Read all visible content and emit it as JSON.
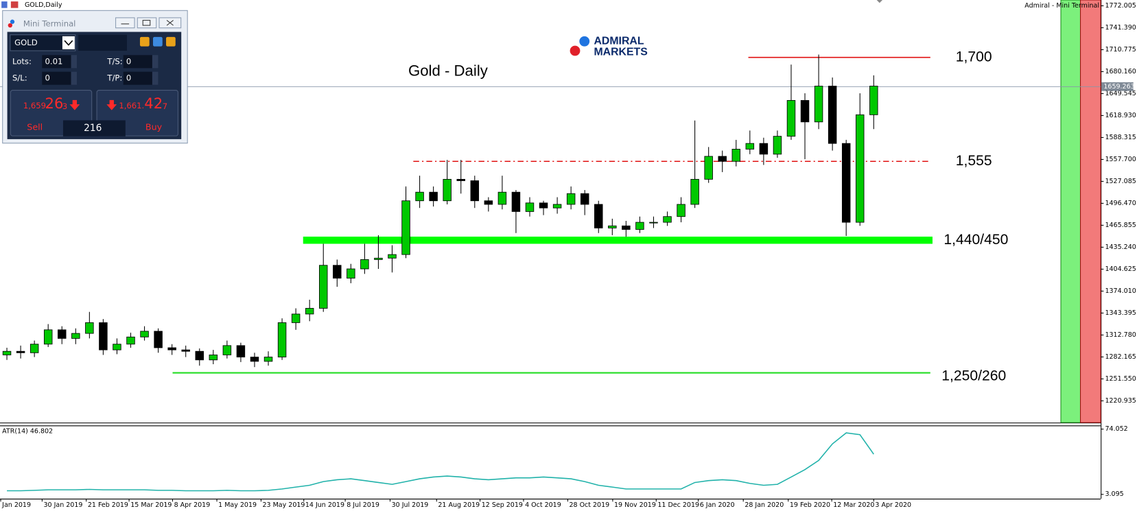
{
  "chart_data": {
    "type": "candlestick",
    "title": "GOLD,Daily",
    "terminal_title": "Admiral - Mini Terminal",
    "annotation": "Gold - Daily",
    "brand": [
      "ADMIRAL",
      "MARKETS"
    ],
    "open": [
      1285,
      1290,
      1288,
      1300,
      1320,
      1308,
      1315,
      1330,
      1292,
      1300,
      1310,
      1318,
      1295,
      1292,
      1290,
      1278,
      1285,
      1298,
      1282,
      1276,
      1282,
      1330,
      1342,
      1350,
      1410,
      1392,
      1405,
      1418,
      1420,
      1425,
      1500,
      1512,
      1500,
      1530,
      1528,
      1500,
      1495,
      1512,
      1485,
      1497,
      1490,
      1495,
      1510,
      1495,
      1462,
      1465,
      1460,
      1470,
      1470,
      1478,
      1495,
      1530,
      1562,
      1555,
      1572,
      1580,
      1565,
      1590,
      1640,
      1610,
      1660,
      1580,
      1470,
      1620
    ],
    "high": [
      1295,
      1298,
      1305,
      1328,
      1325,
      1322,
      1345,
      1335,
      1308,
      1316,
      1325,
      1322,
      1300,
      1298,
      1294,
      1292,
      1305,
      1302,
      1288,
      1290,
      1336,
      1350,
      1362,
      1440,
      1418,
      1412,
      1440,
      1452,
      1438,
      1520,
      1535,
      1520,
      1557,
      1557,
      1535,
      1505,
      1535,
      1515,
      1505,
      1500,
      1505,
      1520,
      1515,
      1500,
      1475,
      1472,
      1478,
      1478,
      1485,
      1505,
      1612,
      1575,
      1570,
      1585,
      1598,
      1588,
      1598,
      1690,
      1650,
      1704,
      1672,
      1585,
      1650,
      1675
    ],
    "low": [
      1278,
      1280,
      1282,
      1296,
      1300,
      1300,
      1308,
      1285,
      1286,
      1295,
      1305,
      1288,
      1285,
      1282,
      1270,
      1272,
      1280,
      1275,
      1268,
      1270,
      1278,
      1320,
      1332,
      1345,
      1380,
      1385,
      1398,
      1405,
      1400,
      1420,
      1490,
      1492,
      1495,
      1510,
      1490,
      1485,
      1488,
      1455,
      1478,
      1480,
      1482,
      1488,
      1480,
      1455,
      1452,
      1450,
      1455,
      1462,
      1465,
      1470,
      1490,
      1525,
      1540,
      1548,
      1565,
      1550,
      1560,
      1585,
      1558,
      1600,
      1570,
      1451,
      1465,
      1600
    ],
    "close": [
      1290,
      1288,
      1300,
      1320,
      1308,
      1315,
      1330,
      1292,
      1300,
      1310,
      1318,
      1295,
      1292,
      1290,
      1278,
      1285,
      1298,
      1282,
      1276,
      1282,
      1330,
      1342,
      1350,
      1410,
      1392,
      1405,
      1418,
      1420,
      1425,
      1500,
      1512,
      1500,
      1530,
      1528,
      1500,
      1495,
      1512,
      1485,
      1497,
      1490,
      1495,
      1510,
      1495,
      1462,
      1465,
      1460,
      1470,
      1470,
      1478,
      1495,
      1530,
      1562,
      1555,
      1572,
      1580,
      1565,
      1590,
      1640,
      1610,
      1660,
      1580,
      1470,
      1620,
      1660
    ],
    "up_color": "#00c800",
    "down_color": "#000000",
    "xlim": [
      -0.5,
      79.5
    ],
    "xticks": [
      {
        "value": -0.45,
        "label": "Jan 2019"
      },
      {
        "value": 2.56,
        "label": "30 Jan 2019"
      },
      {
        "value": 5.77,
        "label": "21 Feb 2019"
      },
      {
        "value": 8.88,
        "label": "15 Mar 2019"
      },
      {
        "value": 12.04,
        "label": "8 Apr 2019"
      },
      {
        "value": 15.26,
        "label": "1 May 2019"
      },
      {
        "value": 18.47,
        "label": "23 May 2019"
      },
      {
        "value": 21.58,
        "label": "14 Jun 2019"
      },
      {
        "value": 24.59,
        "label": "8 Jul 2019"
      },
      {
        "value": 27.85,
        "label": "30 Jul 2019"
      },
      {
        "value": 31.23,
        "label": "21 Aug 2019"
      },
      {
        "value": 34.39,
        "label": "12 Sep 2019"
      },
      {
        "value": 37.55,
        "label": "4 Oct 2019"
      },
      {
        "value": 40.76,
        "label": "28 Oct 2019"
      },
      {
        "value": 44.03,
        "label": "19 Nov 2019"
      },
      {
        "value": 47.19,
        "label": "11 Dec 2019"
      },
      {
        "value": 50.25,
        "label": "6 Jan 2020"
      },
      {
        "value": 53.52,
        "label": "28 Jan 2020"
      },
      {
        "value": 56.79,
        "label": "19 Feb 2020"
      },
      {
        "value": 59.95,
        "label": "12 Mar 2020"
      },
      {
        "value": 63.0,
        "label": "3 Apr 2020"
      }
    ],
    "ylim": [
      1190.6,
      1780.1
    ],
    "yticks": [
      1772.005,
      {
        "value": 1741.39,
        "label": "1741.390"
      },
      1710.775,
      {
        "value": 1680.16,
        "label": "1680.160"
      },
      1649.545,
      {
        "value": 1618.93,
        "label": "1618.930"
      },
      1588.315,
      {
        "value": 1557.7,
        "label": "1557.700"
      },
      1527.085,
      {
        "value": 1496.47,
        "label": "1496.470"
      },
      1465.855,
      {
        "value": 1435.24,
        "label": "1435.240"
      },
      1404.625,
      {
        "value": 1374.01,
        "label": "1374.010"
      },
      1343.395,
      {
        "value": 1312.78,
        "label": "1312.780"
      },
      1282.165,
      {
        "value": 1251.55,
        "label": "1251.550"
      },
      1220.935
    ],
    "current_price": 1659.263,
    "levels": [
      {
        "label": "1,700",
        "values": [
          1700
        ],
        "color": "#e01010",
        "style": "solid"
      },
      {
        "label": "1,555",
        "values": [
          1555
        ],
        "color": "#e01010",
        "style": "dashdot"
      },
      {
        "label": "1,440/450",
        "values": [
          1440,
          1450
        ],
        "color": "#00ff00",
        "style": "band"
      },
      {
        "label": "1,250/260",
        "values": [
          1250,
          1260
        ],
        "color": "#22dd22",
        "style": "line"
      }
    ],
    "indicator": {
      "type": "line",
      "name": "ATR(14) 46.802",
      "color": "#20b2aa",
      "values": [
        7,
        7,
        7.5,
        8,
        8,
        8,
        8.5,
        8,
        8,
        8,
        8,
        7.5,
        7.5,
        7,
        7,
        7,
        7.5,
        7,
        7,
        7.5,
        9,
        11,
        13,
        17,
        19,
        20,
        18,
        16,
        14,
        17,
        20,
        22,
        23,
        22,
        20,
        19,
        20,
        21,
        21,
        22,
        21,
        20,
        17,
        13,
        11,
        9,
        9,
        9,
        9,
        9,
        16,
        18,
        19,
        18,
        15,
        13,
        14,
        22,
        30,
        40,
        58,
        70,
        68,
        46.802
      ],
      "ylim": [
        -1.6,
        78.0
      ],
      "yticks": [
        74.052,
        3.095
      ]
    }
  },
  "mini_terminal": {
    "title": "Mini Terminal",
    "symbol": "GOLD",
    "lots_label": "Lots:",
    "lots": "0.01",
    "ts_label": "T/S:",
    "ts": "0",
    "sl_label": "S/L:",
    "sl": "0",
    "tp_label": "T/P:",
    "tp": "0",
    "sell_price": [
      "1,659.",
      "26",
      "3"
    ],
    "buy_price": [
      "1,661.",
      "42",
      "7"
    ],
    "sell": "Sell",
    "spread": "216",
    "buy": "Buy"
  }
}
